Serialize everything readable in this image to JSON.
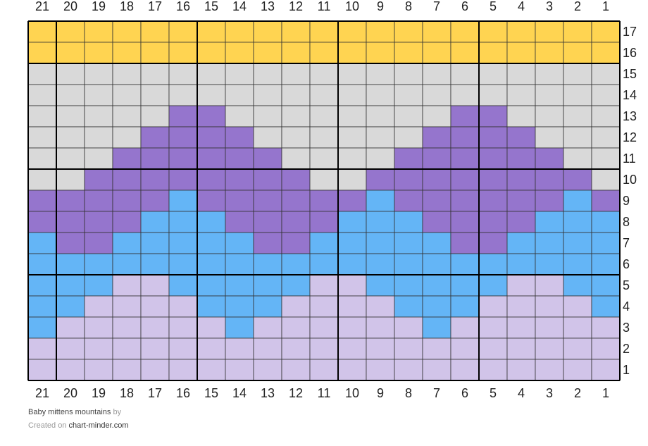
{
  "chart": {
    "columns": [
      "21",
      "20",
      "19",
      "18",
      "17",
      "16",
      "15",
      "14",
      "13",
      "12",
      "11",
      "10",
      "9",
      "8",
      "7",
      "6",
      "5",
      "4",
      "3",
      "2",
      "1"
    ],
    "palette": {
      "Y": "#ffd451",
      "G": "#d9d9d9",
      "P": "#9575cd",
      "B": "#64b5f6",
      "L": "#d1c4e9"
    },
    "rows": [
      {
        "label": "17",
        "cells": "YYYYYYYYYYYYYYYYYYYYY"
      },
      {
        "label": "16",
        "cells": "YYYYYYYYYYYYYYYYYYYYY"
      },
      {
        "label": "15",
        "cells": "GGGGGGGGGGGGGGGGGGGGG"
      },
      {
        "label": "14",
        "cells": "GGGGGGGGGGGGGGGGGGGGG"
      },
      {
        "label": "13",
        "cells": "GGGGGPPGGGGGGGGPPGGGG"
      },
      {
        "label": "12",
        "cells": "GGGGPPPPGGGGGGPPPPGGG"
      },
      {
        "label": "11",
        "cells": "GGGPPPPPPGGGGPPPPPPGG"
      },
      {
        "label": "10",
        "cells": "GGPPPPPPPPGGPPPPPPPPG"
      },
      {
        "label": "9",
        "cells": "PPPPPBPPPPPPBPPPPPPBP"
      },
      {
        "label": "8",
        "cells": "PPPPBBBPPPPBBBPPPPBBB"
      },
      {
        "label": "7",
        "cells": "BPPBBBBBPPBBBBBPPBBBB"
      },
      {
        "label": "6",
        "cells": "BBBBBBBBBBBBBBBBBBBBB"
      },
      {
        "label": "5",
        "cells": "BBBLLBBBBBLLBBBBBLLBB"
      },
      {
        "label": "4",
        "cells": "BBLLLLBBBLLLLBBBLLLLB"
      },
      {
        "label": "3",
        "cells": "BLLLLLLBLLLLLLBLLLLLL"
      },
      {
        "label": "2",
        "cells": "LLLLLLLLLLLLLLLLLLLLL"
      },
      {
        "label": "1",
        "cells": "LLLLLLLLLLLLLLLLLLLLL"
      }
    ]
  },
  "footer": {
    "title": "Baby mittens mountains",
    "by": "by",
    "created": "Created on",
    "site": "chart-minder.com"
  }
}
